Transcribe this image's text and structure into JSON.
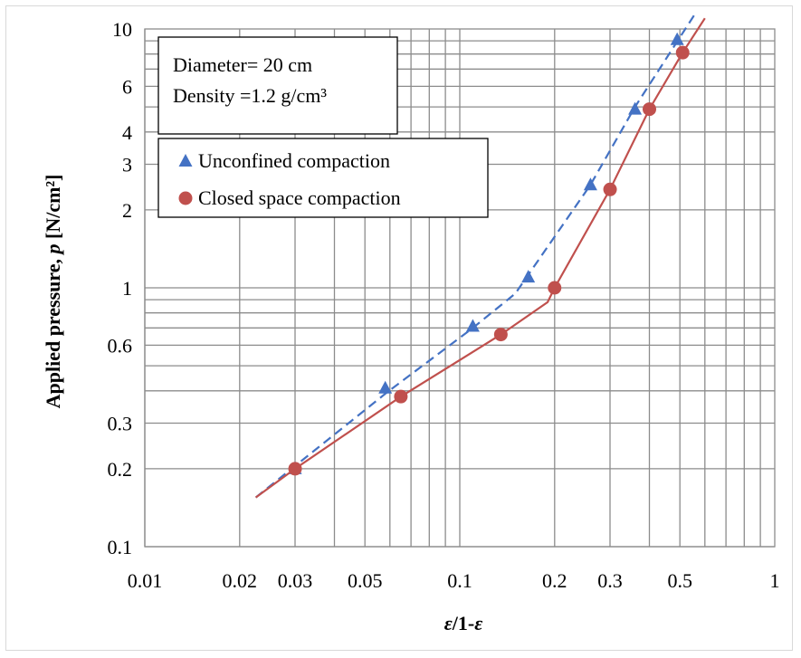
{
  "chart_data": {
    "type": "scatter",
    "x_scale": "log",
    "y_scale": "log",
    "xlim": [
      0.01,
      1
    ],
    "ylim": [
      0.1,
      10
    ],
    "grid": true,
    "xlabel_parts": [
      "ε",
      "/1-",
      "ε"
    ],
    "ylabel_main": "Applied pressure, ",
    "ylabel_var": "p",
    "ylabel_unit": " [N/cm²]",
    "x_ticks": [
      0.01,
      0.02,
      0.03,
      0.05,
      0.1,
      0.2,
      0.3,
      0.5,
      1
    ],
    "x_tick_labels": [
      "0.01",
      "0.02",
      "0.03",
      "0.05",
      "0.1",
      "0.2",
      "0.3",
      "0.5",
      "1"
    ],
    "y_ticks": [
      0.1,
      0.2,
      0.3,
      0.6,
      1,
      2,
      3,
      4,
      6,
      10
    ],
    "y_tick_labels": [
      "0.1",
      "0.2",
      "0.3",
      "0.6",
      "1",
      "2",
      "3",
      "4",
      "6",
      "10"
    ],
    "annotation": [
      "Diameter= 20 cm",
      "Density =1.2 g/cm³"
    ],
    "legend_position": "upper-left",
    "series": [
      {
        "name": "Unconfined compaction",
        "marker": "triangle",
        "color": "#4472C4",
        "line_style": "dashed",
        "x": [
          0.03,
          0.058,
          0.11,
          0.165,
          0.26,
          0.36,
          0.49
        ],
        "y": [
          0.2,
          0.41,
          0.71,
          1.1,
          2.5,
          4.9,
          9.1
        ],
        "line": {
          "x": [
            0.0225,
            0.058,
            0.11,
            0.15,
            0.26,
            0.36,
            0.56
          ],
          "y": [
            0.155,
            0.39,
            0.7,
            0.95,
            2.5,
            5.0,
            11.5
          ]
        }
      },
      {
        "name": "Closed space compaction",
        "marker": "circle",
        "color": "#C0504D",
        "line_style": "solid",
        "x": [
          0.03,
          0.065,
          0.135,
          0.2,
          0.3,
          0.4,
          0.51
        ],
        "y": [
          0.2,
          0.38,
          0.66,
          1.0,
          2.4,
          4.9,
          8.1
        ],
        "line": {
          "x": [
            0.0225,
            0.03,
            0.065,
            0.135,
            0.19,
            0.2,
            0.3,
            0.4,
            0.51,
            0.6
          ],
          "y": [
            0.155,
            0.2,
            0.38,
            0.66,
            0.88,
            1.0,
            2.4,
            4.9,
            8.1,
            11
          ]
        }
      }
    ]
  }
}
